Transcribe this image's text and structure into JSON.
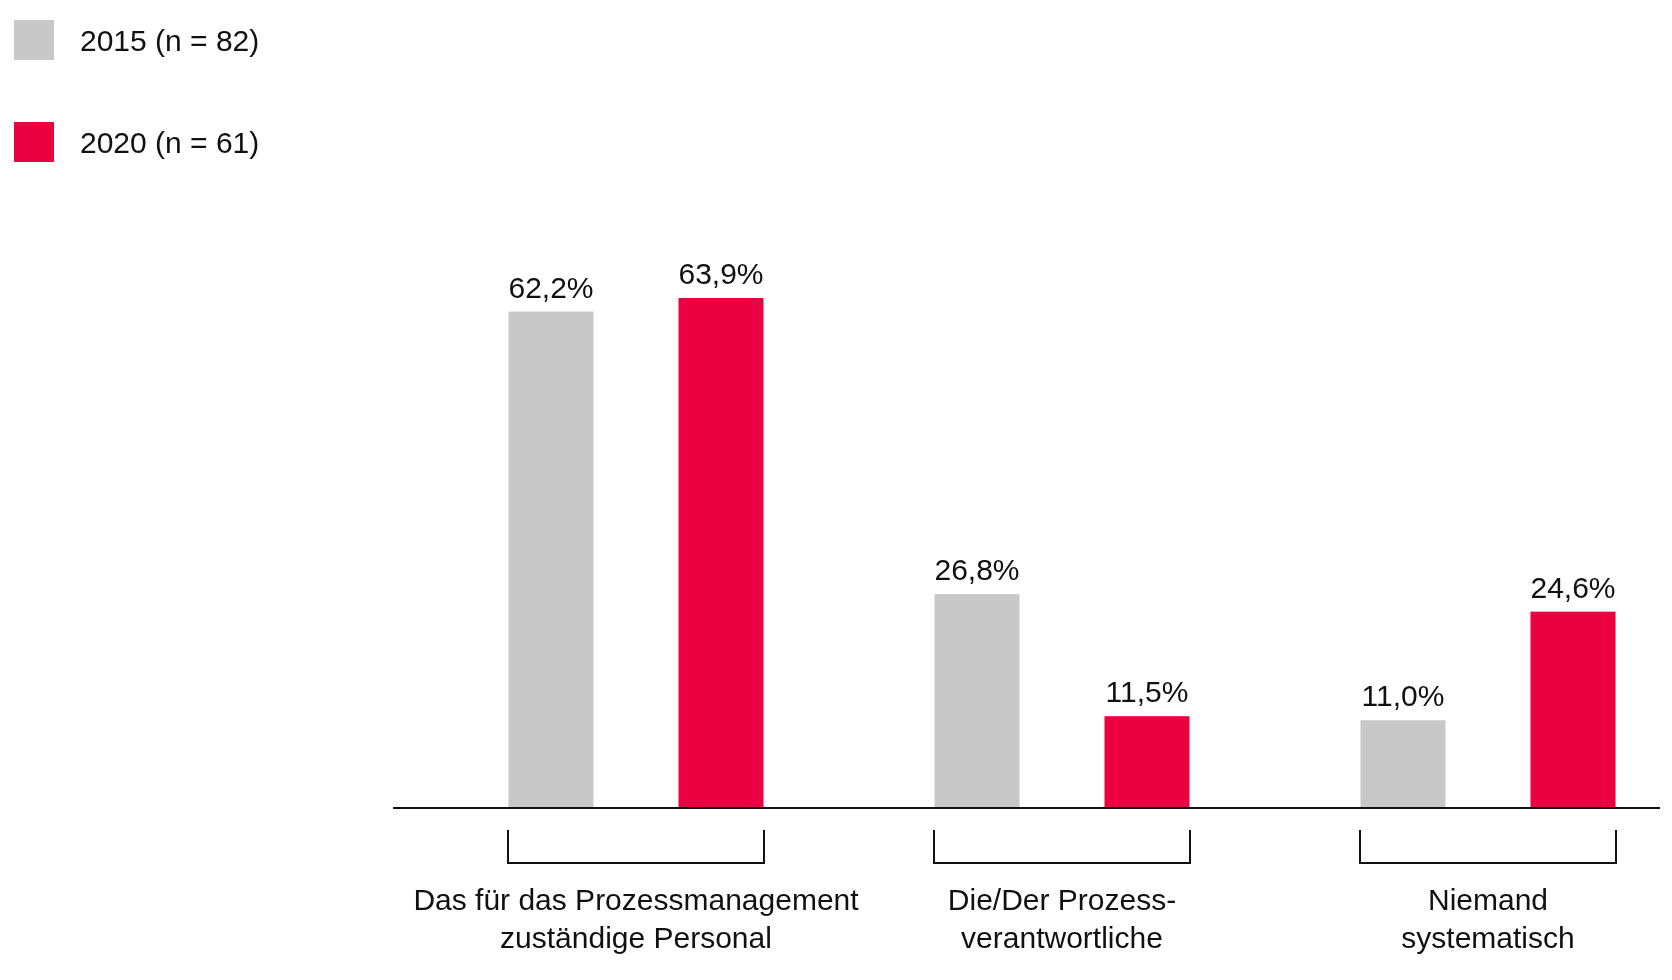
{
  "chart_data": {
    "type": "bar",
    "categories": [
      "Das für das Prozessmanagement\nzuständige Personal",
      "Die/Der Prozess-\nverantwortliche",
      "Niemand\nsystematisch"
    ],
    "series": [
      {
        "name": "2015 (n = 82)",
        "color": "#c8c8c8",
        "values": [
          62.2,
          26.8,
          11.0
        ],
        "value_labels": [
          "62,2%",
          "26,8%",
          "11,0%"
        ]
      },
      {
        "name": "2020 (n = 61)",
        "color": "#eb0041",
        "values": [
          63.9,
          11.5,
          24.6
        ],
        "value_labels": [
          "63,9%",
          "11,5%",
          "24,6%"
        ]
      }
    ],
    "legend": "top left"
  }
}
